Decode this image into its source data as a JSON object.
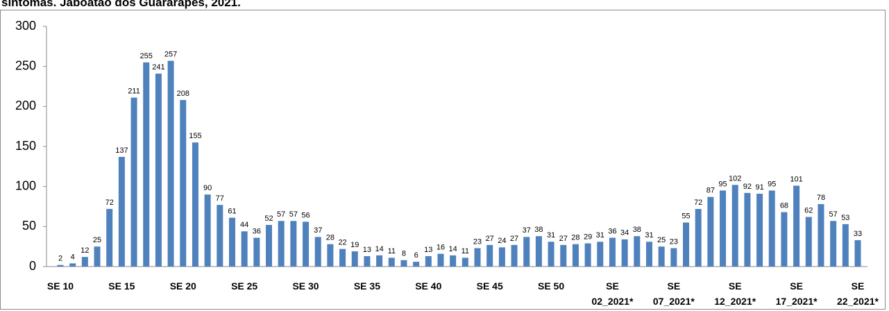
{
  "chart_data": {
    "type": "bar",
    "title": "sintomas. Jaboatão dos Guararapes, 2021.",
    "categories": [
      "SE 10",
      null,
      null,
      null,
      null,
      "SE 15",
      null,
      null,
      null,
      null,
      "SE 20",
      null,
      null,
      null,
      null,
      "SE 25",
      null,
      null,
      null,
      null,
      "SE 30",
      null,
      null,
      null,
      null,
      "SE 35",
      null,
      null,
      null,
      null,
      "SE 40",
      null,
      null,
      null,
      null,
      "SE 45",
      null,
      null,
      null,
      null,
      "SE 50",
      null,
      null,
      null,
      null,
      "SE 02_2021*",
      null,
      null,
      null,
      null,
      "SE 07_2021*",
      null,
      null,
      null,
      null,
      "SE 12_2021*",
      null,
      null,
      null,
      null,
      "SE 17_2021*",
      null,
      null,
      null,
      null,
      "SE 22_2021*"
    ],
    "values": [
      2,
      4,
      12,
      25,
      72,
      137,
      211,
      255,
      241,
      257,
      208,
      155,
      90,
      77,
      61,
      44,
      36,
      52,
      57,
      57,
      56,
      37,
      28,
      22,
      19,
      13,
      14,
      11,
      8,
      6,
      13,
      16,
      14,
      11,
      23,
      27,
      24,
      27,
      37,
      38,
      31,
      27,
      28,
      29,
      31,
      36,
      34,
      38,
      31,
      25,
      23,
      55,
      72,
      87,
      95,
      102,
      92,
      91,
      95,
      68,
      101,
      62,
      78,
      57,
      53,
      33
    ],
    "color": "#4f81bd",
    "ylim": [
      0,
      300
    ],
    "yticks": [
      0,
      50,
      100,
      150,
      200,
      250,
      300
    ],
    "grid": false
  }
}
